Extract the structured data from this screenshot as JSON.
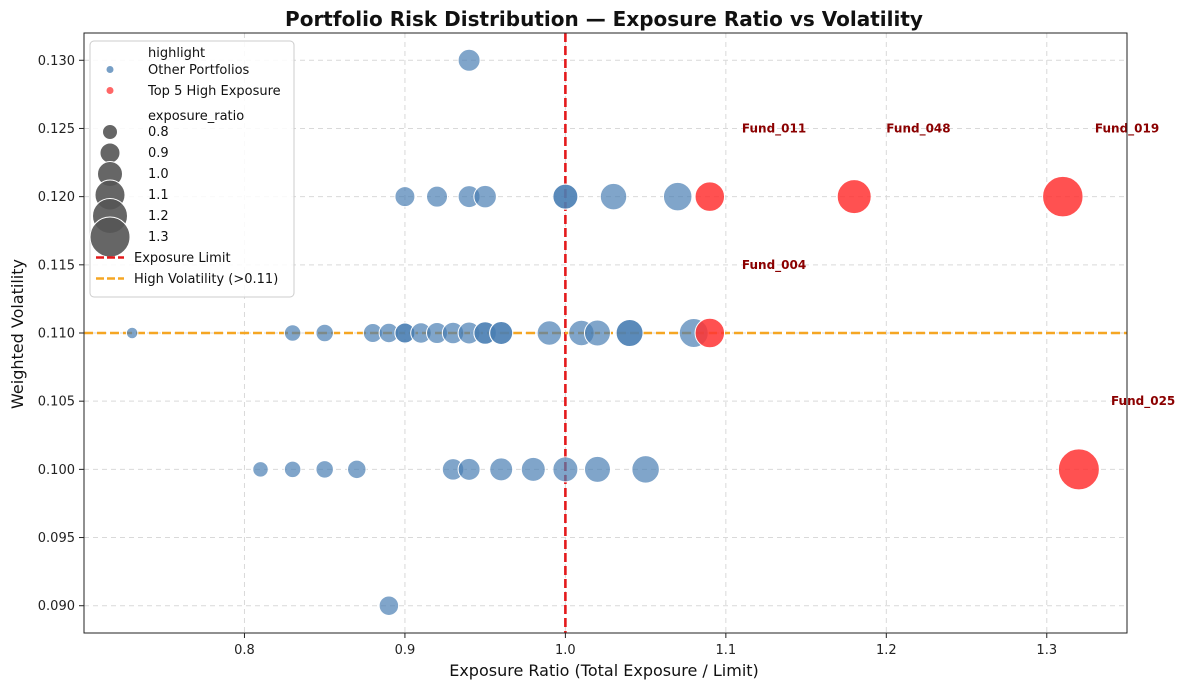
{
  "chart_data": {
    "type": "scatter",
    "title": "Portfolio Risk Distribution — Exposure Ratio vs Volatility",
    "xlabel": "Exposure Ratio (Total Exposure / Limit)",
    "ylabel": "Weighted Volatility",
    "xlim": [
      0.7,
      1.35
    ],
    "ylim": [
      0.088,
      0.132
    ],
    "x_ticks": [
      0.8,
      0.9,
      1.0,
      1.1,
      1.2,
      1.3
    ],
    "x_tick_labels": [
      "0.8",
      "0.9",
      "1.0",
      "1.1",
      "1.2",
      "1.3"
    ],
    "y_ticks": [
      0.09,
      0.095,
      0.1,
      0.105,
      0.11,
      0.115,
      0.12,
      0.125,
      0.13
    ],
    "y_tick_labels": [
      "0.090",
      "0.095",
      "0.100",
      "0.105",
      "0.110",
      "0.115",
      "0.120",
      "0.125",
      "0.130"
    ],
    "grid": true,
    "legend_position": "top-left",
    "size_variable": "exposure_ratio",
    "colors": {
      "other": "#4a7fb3",
      "top": "#ff3333",
      "exposure_line": "#e41a1c",
      "volatility_line": "#f5a623",
      "annotation": "#8b0000",
      "size_legend": "#555555"
    },
    "reference_lines": [
      {
        "name": "Exposure Limit",
        "orientation": "vertical",
        "value": 1.0,
        "color": "#e41a1c"
      },
      {
        "name": "High Volatility (>0.11)",
        "orientation": "horizontal",
        "value": 0.11,
        "color": "#f5a623"
      }
    ],
    "series": [
      {
        "name": "Other Portfolios",
        "color": "#4a7fb3",
        "points": [
          {
            "x": 0.94,
            "y": 0.13
          },
          {
            "x": 0.9,
            "y": 0.12
          },
          {
            "x": 0.92,
            "y": 0.12
          },
          {
            "x": 0.94,
            "y": 0.12
          },
          {
            "x": 0.95,
            "y": 0.12
          },
          {
            "x": 1.0,
            "y": 0.12
          },
          {
            "x": 1.0,
            "y": 0.12
          },
          {
            "x": 1.03,
            "y": 0.12
          },
          {
            "x": 1.07,
            "y": 0.12
          },
          {
            "x": 0.73,
            "y": 0.11
          },
          {
            "x": 0.83,
            "y": 0.11
          },
          {
            "x": 0.85,
            "y": 0.11
          },
          {
            "x": 0.88,
            "y": 0.11
          },
          {
            "x": 0.89,
            "y": 0.11
          },
          {
            "x": 0.9,
            "y": 0.11
          },
          {
            "x": 0.9,
            "y": 0.11
          },
          {
            "x": 0.91,
            "y": 0.11
          },
          {
            "x": 0.92,
            "y": 0.11
          },
          {
            "x": 0.93,
            "y": 0.11
          },
          {
            "x": 0.94,
            "y": 0.11
          },
          {
            "x": 0.95,
            "y": 0.11
          },
          {
            "x": 0.95,
            "y": 0.11
          },
          {
            "x": 0.96,
            "y": 0.11
          },
          {
            "x": 0.96,
            "y": 0.11
          },
          {
            "x": 0.99,
            "y": 0.11
          },
          {
            "x": 1.01,
            "y": 0.11
          },
          {
            "x": 1.02,
            "y": 0.11
          },
          {
            "x": 1.04,
            "y": 0.11
          },
          {
            "x": 1.04,
            "y": 0.11
          },
          {
            "x": 1.08,
            "y": 0.11
          },
          {
            "x": 0.81,
            "y": 0.1
          },
          {
            "x": 0.83,
            "y": 0.1
          },
          {
            "x": 0.85,
            "y": 0.1
          },
          {
            "x": 0.87,
            "y": 0.1
          },
          {
            "x": 0.93,
            "y": 0.1
          },
          {
            "x": 0.94,
            "y": 0.1
          },
          {
            "x": 0.96,
            "y": 0.1
          },
          {
            "x": 0.98,
            "y": 0.1
          },
          {
            "x": 1.0,
            "y": 0.1
          },
          {
            "x": 1.02,
            "y": 0.1
          },
          {
            "x": 1.05,
            "y": 0.1
          },
          {
            "x": 0.89,
            "y": 0.09
          }
        ]
      },
      {
        "name": "Top 5 High Exposure",
        "color": "#ff3333",
        "points": [
          {
            "x": 1.09,
            "y": 0.12
          },
          {
            "x": 1.18,
            "y": 0.12
          },
          {
            "x": 1.31,
            "y": 0.12
          },
          {
            "x": 1.09,
            "y": 0.11
          },
          {
            "x": 1.32,
            "y": 0.1
          }
        ]
      }
    ],
    "annotations": [
      {
        "text": "Fund_011",
        "x": 1.11,
        "y": 0.125
      },
      {
        "text": "Fund_048",
        "x": 1.2,
        "y": 0.125
      },
      {
        "text": "Fund_019",
        "x": 1.33,
        "y": 0.125
      },
      {
        "text": "Fund_004",
        "x": 1.11,
        "y": 0.115
      },
      {
        "text": "Fund_025",
        "x": 1.34,
        "y": 0.105
      }
    ],
    "legend": {
      "hue_title": "highlight",
      "hue_items": [
        "Other Portfolios",
        "Top 5 High Exposure"
      ],
      "size_title": "exposure_ratio",
      "size_items": [
        "0.8",
        "0.9",
        "1.0",
        "1.1",
        "1.2",
        "1.3"
      ],
      "size_values": [
        0.8,
        0.9,
        1.0,
        1.1,
        1.2,
        1.3
      ],
      "line_items": [
        "Exposure Limit",
        "High Volatility (>0.11)"
      ]
    }
  }
}
